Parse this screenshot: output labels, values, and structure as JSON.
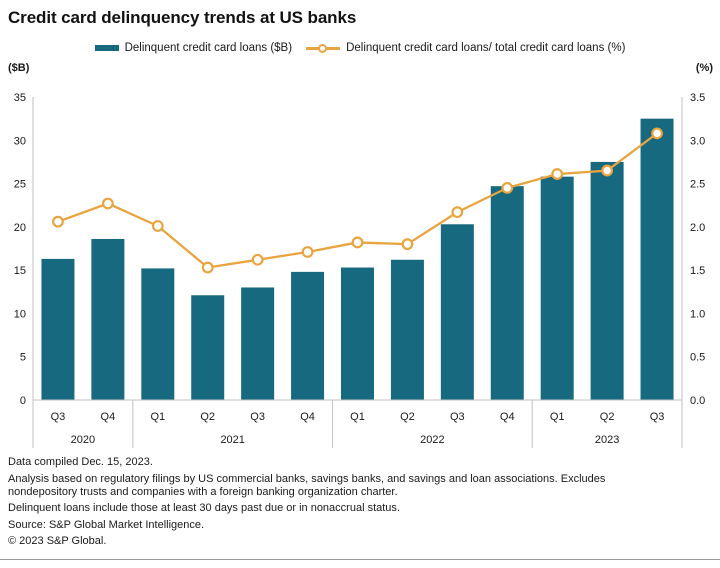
{
  "title": "Credit card delinquency trends at US banks",
  "legend": [
    {
      "label": "Delinquent credit card loans ($B)"
    },
    {
      "label": "Delinquent credit card loans/ total credit card loans (%)"
    }
  ],
  "colors": {
    "bar": "#17697f",
    "line": "#e9a440",
    "marker_fill": "#ffffff",
    "axis": "#c2c2c2",
    "text": "#1a1a1a"
  },
  "chart_data": {
    "type": "bar+line",
    "title": "Credit card delinquency trends at US banks",
    "categories": [
      "Q3",
      "Q4",
      "Q1",
      "Q2",
      "Q3",
      "Q4",
      "Q1",
      "Q2",
      "Q3",
      "Q4",
      "Q1",
      "Q2",
      "Q3"
    ],
    "year_groups": [
      {
        "label": "2020",
        "span": 2
      },
      {
        "label": "2021",
        "span": 4
      },
      {
        "label": "2022",
        "span": 4
      },
      {
        "label": "2023",
        "span": 3
      }
    ],
    "series": [
      {
        "name": "Delinquent credit card loans ($B)",
        "type": "bar",
        "axis": "left",
        "values": [
          16.3,
          18.6,
          15.2,
          12.1,
          13.0,
          14.8,
          15.3,
          16.2,
          20.3,
          24.7,
          25.8,
          27.5,
          32.5
        ]
      },
      {
        "name": "Delinquent credit card loans/ total credit card loans (%)",
        "type": "line",
        "axis": "right",
        "values": [
          2.06,
          2.27,
          2.01,
          1.53,
          1.62,
          1.71,
          1.82,
          1.8,
          2.17,
          2.45,
          2.61,
          2.65,
          3.08
        ]
      }
    ],
    "left_axis": {
      "label": "($B)",
      "min": 0,
      "max": 35,
      "ticks": [
        "35",
        "30",
        "25",
        "20",
        "15",
        "10",
        "5",
        "0"
      ]
    },
    "right_axis": {
      "label": "(%)",
      "min": 0,
      "max": 3.5,
      "ticks": [
        "3.5",
        "3.0",
        "2.5",
        "2.0",
        "1.5",
        "1.0",
        "0.5",
        "0.0"
      ]
    },
    "grid": false,
    "legend_position": "top"
  },
  "footnotes": [
    "Data compiled Dec. 15, 2023.",
    "Analysis based on regulatory filings by US commercial banks, savings banks, and savings and loan associations. Excludes nondepository trusts and companies with a foreign banking organization charter.",
    "Delinquent loans include those at least 30 days past due or in nonaccrual status.",
    "Source: S&P Global Market Intelligence.",
    "© 2023 S&P Global."
  ]
}
